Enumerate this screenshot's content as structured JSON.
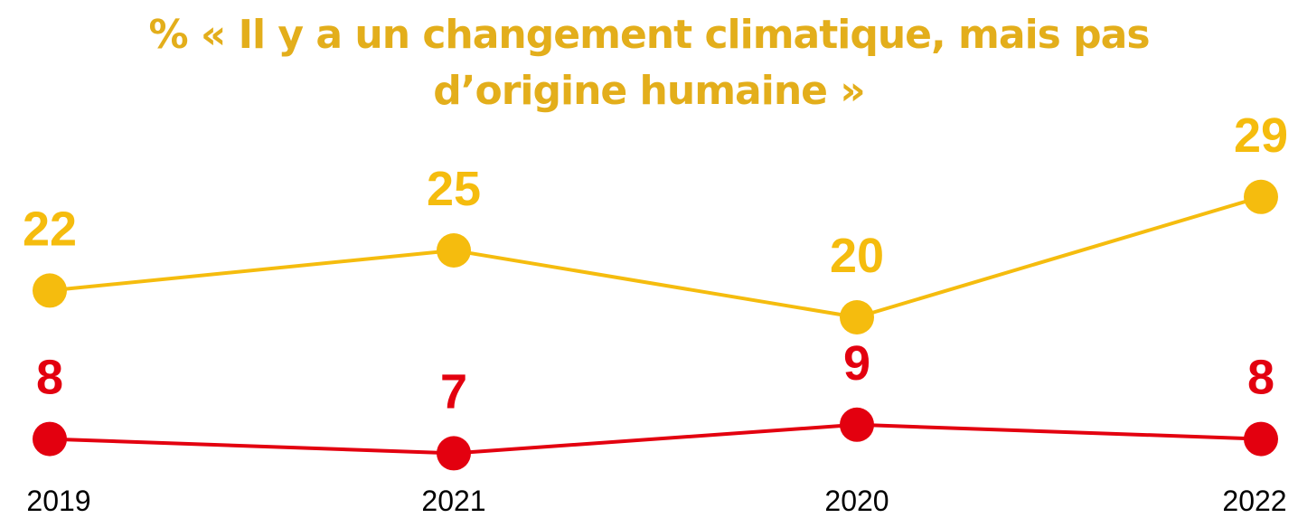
{
  "chart_data": {
    "type": "line",
    "title_lines": [
      "% « Il y a un changement climatique, mais pas",
      "d’origine humaine »"
    ],
    "categories": [
      "2019",
      "2021",
      "2020",
      "2022"
    ],
    "series": [
      {
        "values": [
          22,
          25,
          20,
          29
        ],
        "color": "#F5BC0E",
        "label_color": "#F5BC0E"
      },
      {
        "values": [
          8,
          7,
          9,
          8
        ],
        "color": "#E3000F",
        "label_color": "#E3000F"
      }
    ],
    "grid": false,
    "legend": "none"
  }
}
